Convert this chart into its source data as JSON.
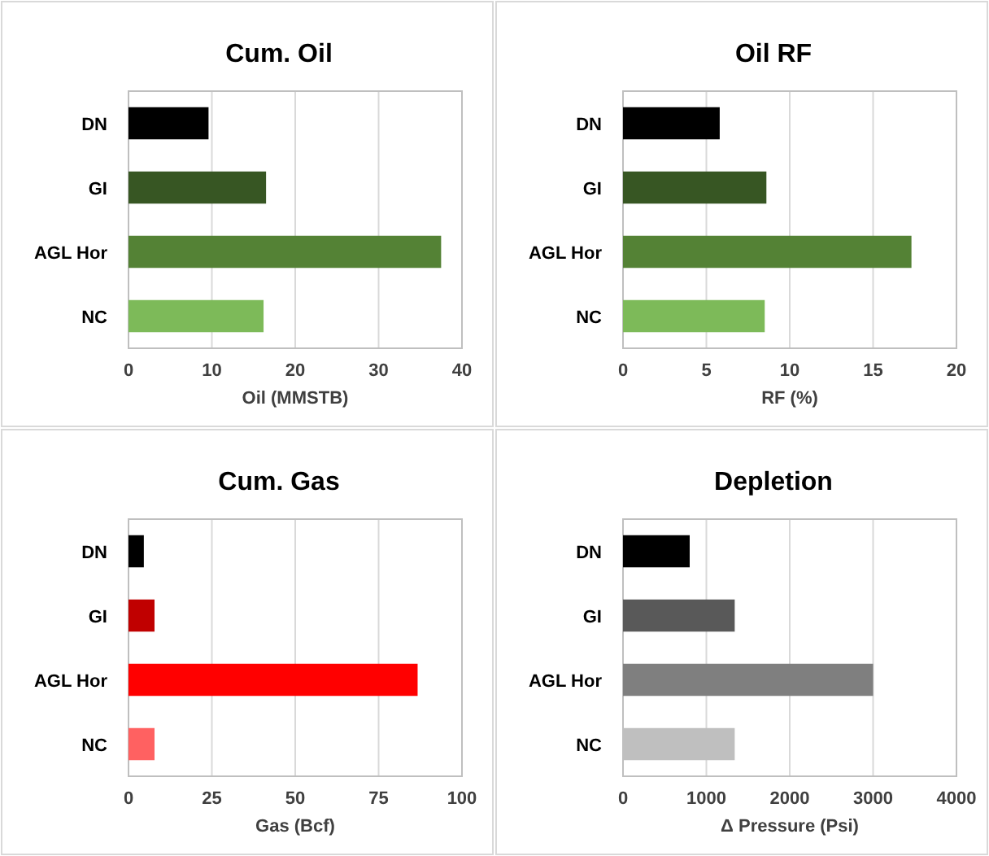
{
  "chart_data": [
    {
      "type": "bar",
      "orientation": "horizontal",
      "title": "Cum. Oil",
      "xlabel": "Oil (MMSTB)",
      "categories": [
        "DN",
        "GI",
        "AGL Hor",
        "NC"
      ],
      "values": [
        9.6,
        16.5,
        37.5,
        16.2
      ],
      "colors": [
        "#000000",
        "#375623",
        "#548235",
        "#7dba59"
      ],
      "xlim": [
        0,
        40
      ],
      "xticks": [
        0,
        10,
        20,
        30,
        40
      ],
      "grid": "x"
    },
    {
      "type": "bar",
      "orientation": "horizontal",
      "title": "Oil RF",
      "xlabel": "RF (%)",
      "categories": [
        "DN",
        "GI",
        "AGL Hor",
        "NC"
      ],
      "values": [
        5.8,
        8.6,
        17.3,
        8.5
      ],
      "colors": [
        "#000000",
        "#375623",
        "#548235",
        "#7dba59"
      ],
      "xlim": [
        0,
        20
      ],
      "xticks": [
        0,
        5,
        10,
        15,
        20
      ],
      "grid": "x"
    },
    {
      "type": "bar",
      "orientation": "horizontal",
      "title": "Cum. Gas",
      "xlabel": "Gas (Bcf)",
      "categories": [
        "DN",
        "GI",
        "AGL Hor",
        "NC"
      ],
      "values": [
        4.6,
        7.8,
        86.7,
        7.8
      ],
      "colors": [
        "#000000",
        "#c00000",
        "#ff0000",
        "#ff6161"
      ],
      "xlim": [
        0,
        100
      ],
      "xticks": [
        0,
        25,
        50,
        75,
        100
      ],
      "grid": "x"
    },
    {
      "type": "bar",
      "orientation": "horizontal",
      "title": "Depletion",
      "xlabel": "Δ Pressure (Psi)",
      "categories": [
        "DN",
        "GI",
        "AGL Hor",
        "NC"
      ],
      "values": [
        800,
        1340,
        3000,
        1340
      ],
      "colors": [
        "#000000",
        "#595959",
        "#7f7f7f",
        "#bfbfbf"
      ],
      "xlim": [
        0,
        4000
      ],
      "xticks": [
        0,
        1000,
        2000,
        3000,
        4000
      ],
      "grid": "x"
    }
  ]
}
